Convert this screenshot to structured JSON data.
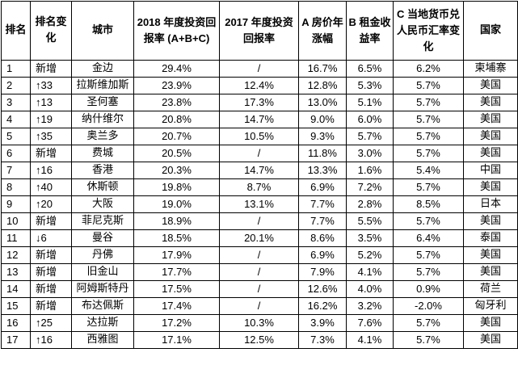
{
  "headers": {
    "rank": "排名",
    "rank_change": "排名变化",
    "city": "城市",
    "roi_2018": "2018 年度投资回报率 (A+B+C)",
    "roi_2017": "2017 年度投资回报率",
    "house_price": "A 房价年涨幅",
    "rent_yield": "B 租金收益率",
    "fx_change": "C 当地货币兑人民币汇率变化",
    "country": "国家"
  },
  "rows": [
    {
      "rank": "1",
      "change": "新增",
      "city": "金边",
      "roi2018": "29.4%",
      "roi2017": "/",
      "price": "16.7%",
      "rent": "6.5%",
      "fx": "6.2%",
      "country": "柬埔寨"
    },
    {
      "rank": "2",
      "change": "↑33",
      "city": "拉斯维加斯",
      "roi2018": "23.9%",
      "roi2017": "12.4%",
      "price": "12.8%",
      "rent": "5.3%",
      "fx": "5.7%",
      "country": "美国"
    },
    {
      "rank": "3",
      "change": "↑13",
      "city": "圣何塞",
      "roi2018": "23.8%",
      "roi2017": "17.3%",
      "price": "13.0%",
      "rent": "5.1%",
      "fx": "5.7%",
      "country": "美国"
    },
    {
      "rank": "4",
      "change": "↑19",
      "city": "纳什维尔",
      "roi2018": "20.8%",
      "roi2017": "14.7%",
      "price": "9.0%",
      "rent": "6.0%",
      "fx": "5.7%",
      "country": "美国"
    },
    {
      "rank": "5",
      "change": "↑35",
      "city": "奥兰多",
      "roi2018": "20.7%",
      "roi2017": "10.5%",
      "price": "9.3%",
      "rent": "5.7%",
      "fx": "5.7%",
      "country": "美国"
    },
    {
      "rank": "6",
      "change": "新增",
      "city": "费城",
      "roi2018": "20.5%",
      "roi2017": "/",
      "price": "11.8%",
      "rent": "3.0%",
      "fx": "5.7%",
      "country": "美国"
    },
    {
      "rank": "7",
      "change": "↑16",
      "city": "香港",
      "roi2018": "20.3%",
      "roi2017": "14.7%",
      "price": "13.3%",
      "rent": "1.6%",
      "fx": "5.4%",
      "country": "中国"
    },
    {
      "rank": "8",
      "change": "↑40",
      "city": "休斯顿",
      "roi2018": "19.8%",
      "roi2017": "8.7%",
      "price": "6.9%",
      "rent": "7.2%",
      "fx": "5.7%",
      "country": "美国"
    },
    {
      "rank": "9",
      "change": "↑20",
      "city": "大阪",
      "roi2018": "19.0%",
      "roi2017": "13.1%",
      "price": "7.7%",
      "rent": "2.8%",
      "fx": "8.5%",
      "country": "日本"
    },
    {
      "rank": "10",
      "change": "新增",
      "city": "菲尼克斯",
      "roi2018": "18.9%",
      "roi2017": "/",
      "price": "7.7%",
      "rent": "5.5%",
      "fx": "5.7%",
      "country": "美国"
    },
    {
      "rank": "11",
      "change": "↓6",
      "city": "曼谷",
      "roi2018": "18.5%",
      "roi2017": "20.1%",
      "price": "8.6%",
      "rent": "3.5%",
      "fx": "6.4%",
      "country": "泰国"
    },
    {
      "rank": "12",
      "change": "新增",
      "city": "丹佛",
      "roi2018": "17.9%",
      "roi2017": "/",
      "price": "6.9%",
      "rent": "5.2%",
      "fx": "5.7%",
      "country": "美国"
    },
    {
      "rank": "13",
      "change": "新增",
      "city": "旧金山",
      "roi2018": "17.7%",
      "roi2017": "/",
      "price": "7.9%",
      "rent": "4.1%",
      "fx": "5.7%",
      "country": "美国"
    },
    {
      "rank": "14",
      "change": "新增",
      "city": "阿姆斯特丹",
      "roi2018": "17.5%",
      "roi2017": "/",
      "price": "12.6%",
      "rent": "4.0%",
      "fx": "0.9%",
      "country": "荷兰"
    },
    {
      "rank": "15",
      "change": "新增",
      "city": "布达佩斯",
      "roi2018": "17.4%",
      "roi2017": "/",
      "price": "16.2%",
      "rent": "3.2%",
      "fx": "-2.0%",
      "country": "匈牙利"
    },
    {
      "rank": "16",
      "change": "↑25",
      "city": "达拉斯",
      "roi2018": "17.2%",
      "roi2017": "10.3%",
      "price": "3.9%",
      "rent": "7.6%",
      "fx": "5.7%",
      "country": "美国"
    },
    {
      "rank": "17",
      "change": "↑16",
      "city": "西雅图",
      "roi2018": "17.1%",
      "roi2017": "12.5%",
      "price": "7.3%",
      "rent": "4.1%",
      "fx": "5.7%",
      "country": "美国"
    }
  ]
}
